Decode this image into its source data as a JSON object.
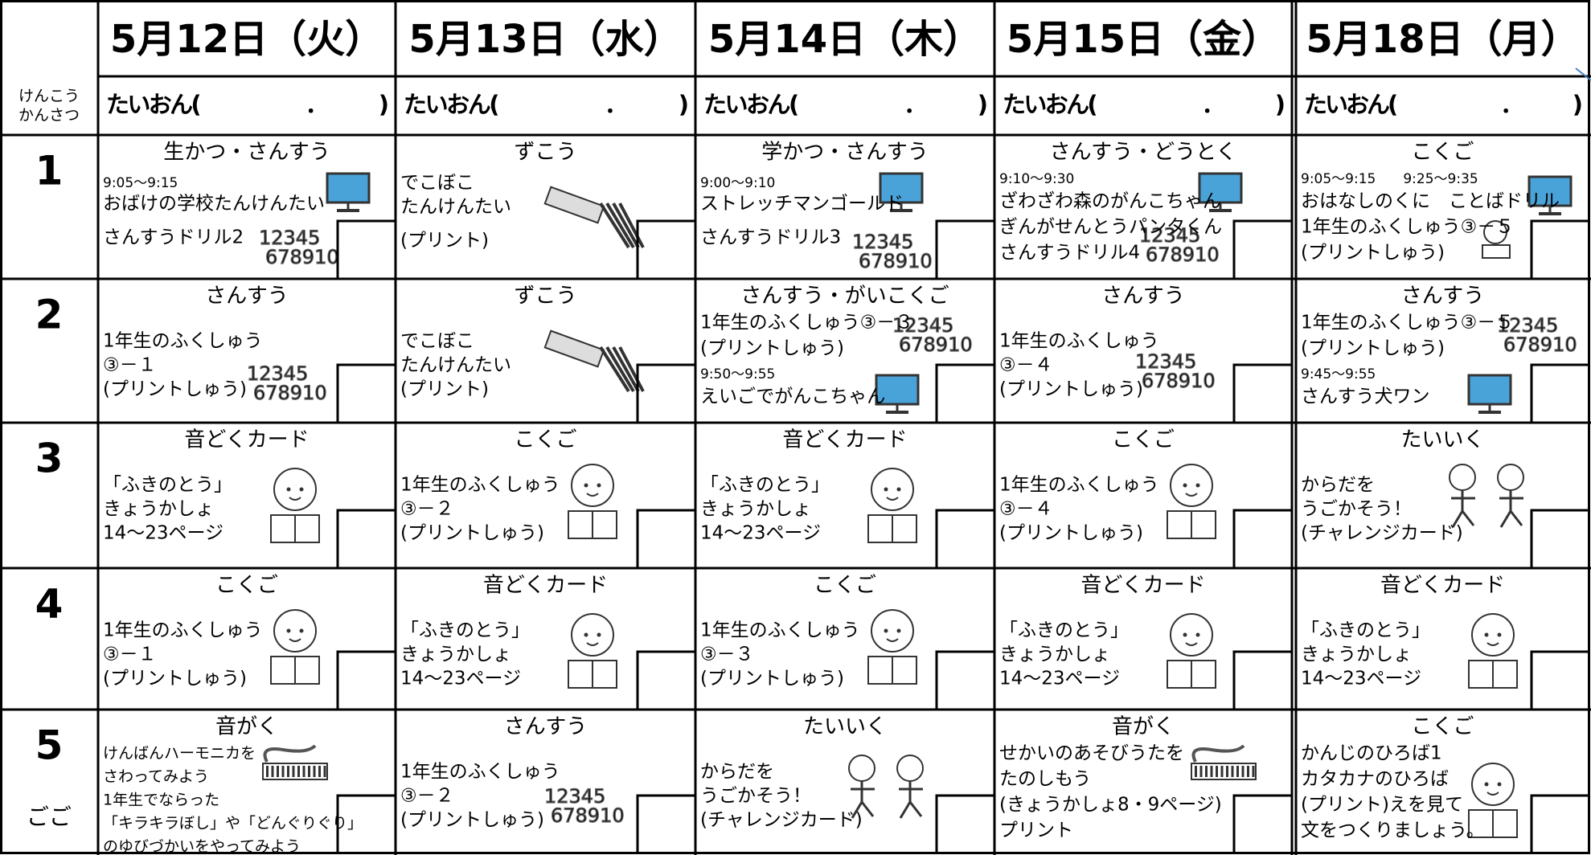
{
  "health_label": [
    "けんこう",
    "かんさつ"
  ],
  "days": [
    {
      "date": "5月12日（火）",
      "temperature": "たいおん(　　　　　．　　　)"
    },
    {
      "date": "5月13日（水）",
      "temperature": "たいおん(　　　　　．　　　)"
    },
    {
      "date": "5月14日（木）",
      "temperature": "たいおん(　　　　　．　　　)"
    },
    {
      "date": "5月15日（金）",
      "temperature": "たいおん(　　　　　．　　　)"
    },
    {
      "date": "5月18日（月）",
      "temperature": "たいおん(　　　　　．　　　)"
    }
  ],
  "periods": [
    {
      "number": "1",
      "cells": [
        {
          "subject": "生かつ・さんすう",
          "lines": [
            "9:05～9:15",
            "おばけの学校たんけんたい",
            "さんすうドリル2"
          ]
        },
        {
          "subject": "ずこう",
          "lines": [
            "でこぼこ",
            "たんけんたい",
            "(プリント)"
          ]
        },
        {
          "subject": "学かつ・さんすう",
          "lines": [
            "9:00～9:10",
            "ストレッチマンゴールド",
            "さんすうドリル3"
          ]
        },
        {
          "subject": "さんすう・どうとく",
          "lines": [
            "9:10～9:30",
            "ざわざわ森のがんこちゃん",
            "ぎんがせんとうパンタくん",
            "さんすうドリル4"
          ]
        },
        {
          "subject": "こくご",
          "lines": [
            "9:05～9:15　　9:25～9:35",
            "おはなしのくに　ことばドリル",
            "1年生のふくしゅう③－５",
            "(プリントしゅう)"
          ]
        }
      ]
    },
    {
      "number": "2",
      "cells": [
        {
          "subject": "さんすう",
          "lines": [
            "1年生のふくしゅう",
            "③－１",
            "(プリントしゅう)"
          ]
        },
        {
          "subject": "ずこう",
          "lines": [
            "でこぼこ",
            "たんけんたい",
            "(プリント)"
          ]
        },
        {
          "subject": "さんすう・がいこくご",
          "lines": [
            "1年生のふくしゅう③－３",
            "(プリントしゅう)",
            "9:50～9:55",
            "えいごでがんこちゃん"
          ]
        },
        {
          "subject": "さんすう",
          "lines": [
            "1年生のふくしゅう",
            "③－４",
            "(プリントしゅう)"
          ]
        },
        {
          "subject": "さんすう",
          "lines": [
            "1年生のふくしゅう③－５",
            "(プリントしゅう)",
            "9:45～9:55",
            "さんすう犬ワン"
          ]
        }
      ]
    },
    {
      "number": "3",
      "cells": [
        {
          "subject": "音どくカード",
          "lines": [
            "「ふきのとう」",
            "きょうかしょ",
            "14～23ページ"
          ]
        },
        {
          "subject": "こくご",
          "lines": [
            "1年生のふくしゅう",
            "③－２",
            "(プリントしゅう)"
          ]
        },
        {
          "subject": "音どくカード",
          "lines": [
            "「ふきのとう」",
            "きょうかしょ",
            "14～23ページ"
          ]
        },
        {
          "subject": "こくご",
          "lines": [
            "1年生のふくしゅう",
            "③－４",
            "(プリントしゅう)"
          ]
        },
        {
          "subject": "たいいく",
          "lines": [
            "からだを",
            "うごかそう！",
            "(チャレンジカード)"
          ]
        }
      ]
    },
    {
      "number": "4",
      "cells": [
        {
          "subject": "こくご",
          "lines": [
            "1年生のふくしゅう",
            "③－１",
            "(プリントしゅう)"
          ]
        },
        {
          "subject": "音どくカード",
          "lines": [
            "「ふきのとう」",
            "きょうかしょ",
            "14～23ページ"
          ]
        },
        {
          "subject": "こくご",
          "lines": [
            "1年生のふくしゅう",
            "③－３",
            "(プリントしゅう)"
          ]
        },
        {
          "subject": "音どくカード",
          "lines": [
            "「ふきのとう」",
            "きょうかしょ",
            "14～23ページ"
          ]
        },
        {
          "subject": "音どくカード",
          "lines": [
            "「ふきのとう」",
            "きょうかしょ",
            "14～23ページ"
          ]
        }
      ]
    },
    {
      "number": "5",
      "note": "ごご",
      "cells": [
        {
          "subject": "音がく",
          "lines": [
            "けんばんハーモニカを",
            "さわってみよう",
            "1年生でならった",
            "「キラキラぼし」や「どんぐりぐり」",
            "のゆびづかいをやってみよう"
          ]
        },
        {
          "subject": "さんすう",
          "lines": [
            "1年生のふくしゅう",
            "③－２",
            "(プリントしゅう)"
          ]
        },
        {
          "subject": "たいいく",
          "lines": [
            "からだを",
            "うごかそう！",
            "(チャレンジカード)"
          ]
        },
        {
          "subject": "音がく",
          "lines": [
            "せかいのあそびうたを",
            "たのしもう",
            "(きょうかしょ8・9ページ)",
            "プリント"
          ]
        },
        {
          "subject": "こくご",
          "lines": [
            "かんじのひろば1",
            "カタカナのひろば",
            "(プリント)えを見て",
            "文をつくりましょう。"
          ]
        }
      ]
    }
  ],
  "number_icon": [
    "12345",
    "678910"
  ]
}
